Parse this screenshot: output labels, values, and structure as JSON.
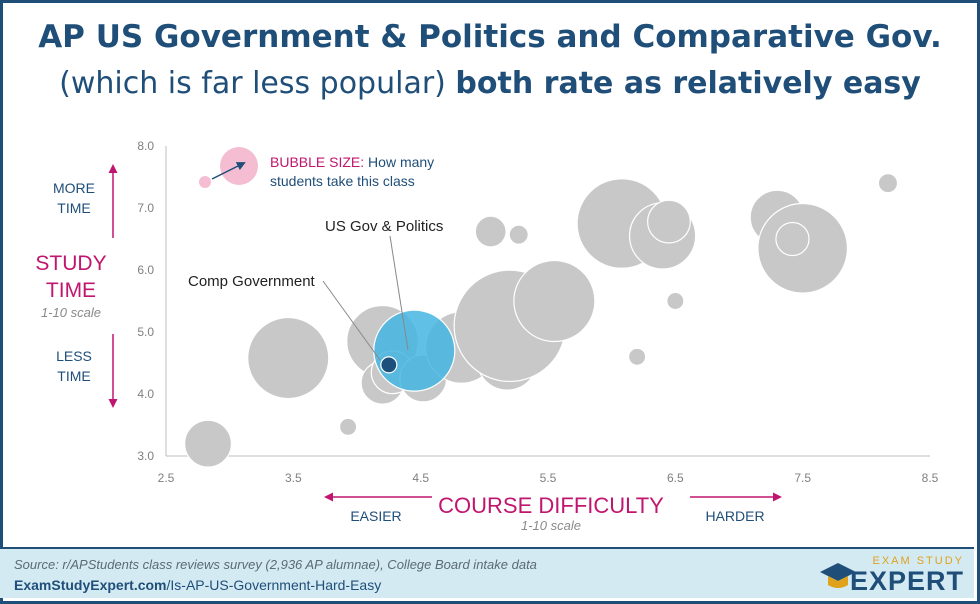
{
  "title": {
    "line1": "AP US Government & Politics and Comparative Gov.",
    "line2_normal": "(which is far less popular) ",
    "line2_bold": "both rate as relatively easy"
  },
  "y_axis_side": {
    "more_line1": "MORE",
    "more_line2": "TIME",
    "study_line1": "STUDY",
    "study_line2": "TIME",
    "scale": "1-10 scale",
    "less_line1": "LESS",
    "less_line2": "TIME"
  },
  "x_axis_side": {
    "easier": "EASIER",
    "title": "COURSE DIFFICULTY",
    "scale": "1-10 scale",
    "harder": "HARDER"
  },
  "bubble_legend": {
    "label": "BUBBLE SIZE:",
    "text_line1": " How many",
    "text_line2": "students take this class"
  },
  "annotations": {
    "us_gov": "US Gov & Politics",
    "comp_gov": "Comp Government"
  },
  "footer": {
    "source": "Source: r/APStudents class reviews survey (2,936 AP alumnae), College Board intake data",
    "url_bold": "ExamStudyExpert.com",
    "url_rest": "/Is-AP-US-Government-Hard-Easy",
    "logo_top": "EXAM STUDY",
    "logo_main": "EXPERT"
  },
  "colors": {
    "navy": "#1f4e79",
    "magenta": "#c0166f",
    "bubble_gray": "#c8c8c8",
    "us_gov_blue": "#45b5e0",
    "comp_gov_navy": "#1d4f7c",
    "legend_pink": "#f4b6cd"
  },
  "chart_data": {
    "type": "scatter",
    "xlim": [
      2.5,
      8.5
    ],
    "ylim": [
      3.0,
      8.0
    ],
    "x_ticks": [
      "2.5",
      "3.5",
      "4.5",
      "5.5",
      "6.5",
      "7.5",
      "8.5"
    ],
    "y_ticks": [
      "3.0",
      "4.0",
      "5.0",
      "6.0",
      "7.0",
      "8.0"
    ],
    "grid": false,
    "size_meaning": "relative number of students taking the class",
    "series": [
      {
        "points": [
          {
            "x": 2.83,
            "y": 3.2,
            "size": 3
          },
          {
            "x": 3.46,
            "y": 4.58,
            "size": 9
          },
          {
            "x": 3.93,
            "y": 3.47,
            "size": 0.4
          },
          {
            "x": 4.2,
            "y": 4.85,
            "size": 7
          },
          {
            "x": 4.2,
            "y": 4.18,
            "size": 2.5
          },
          {
            "x": 4.28,
            "y": 4.35,
            "size": 2.5
          },
          {
            "x": 4.52,
            "y": 4.25,
            "size": 3
          },
          {
            "x": 4.82,
            "y": 4.75,
            "size": 7
          },
          {
            "x": 5.18,
            "y": 4.55,
            "size": 5
          },
          {
            "x": 5.2,
            "y": 5.1,
            "size": 17
          },
          {
            "x": 5.55,
            "y": 5.5,
            "size": 9
          },
          {
            "x": 5.05,
            "y": 6.62,
            "size": 1.3
          },
          {
            "x": 5.27,
            "y": 6.57,
            "size": 0.5
          },
          {
            "x": 6.08,
            "y": 6.75,
            "size": 11
          },
          {
            "x": 6.4,
            "y": 6.55,
            "size": 6
          },
          {
            "x": 6.45,
            "y": 6.78,
            "size": 2.5
          },
          {
            "x": 6.2,
            "y": 4.6,
            "size": 0.4
          },
          {
            "x": 6.5,
            "y": 5.5,
            "size": 0.4
          },
          {
            "x": 7.3,
            "y": 6.85,
            "size": 4
          },
          {
            "x": 7.5,
            "y": 6.35,
            "size": 11
          },
          {
            "x": 7.42,
            "y": 6.5,
            "size": 1.5
          },
          {
            "x": 8.17,
            "y": 7.4,
            "size": 0.5
          }
        ]
      },
      {
        "name": "US Gov & Politics",
        "points": [
          {
            "x": 4.45,
            "y": 4.7,
            "size": 9
          }
        ]
      },
      {
        "name": "Comp Government",
        "points": [
          {
            "x": 4.25,
            "y": 4.47,
            "size": 0.35
          }
        ]
      }
    ]
  }
}
